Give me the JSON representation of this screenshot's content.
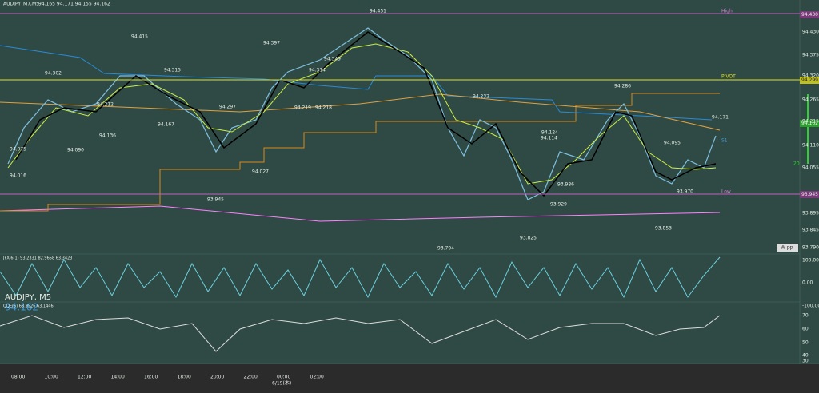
{
  "header": {
    "symbol": "AUDJPY_M7,M5",
    "quote": "94.165 94.171 94.155 94.162"
  },
  "watermark": {
    "symbol": "AUDJPY, M5",
    "price": "94.162"
  },
  "price_axis": [
    "94.430",
    "94.375",
    "94.320",
    "94.265",
    "94.215",
    "94.110",
    "94.055",
    "93.895",
    "93.845",
    "93.790"
  ],
  "price_boxes": {
    "high": "94.430",
    "pivot": "94.299",
    "current": "94.162",
    "low": "93.945"
  },
  "levels": {
    "high": "High",
    "pivot": "PIVOT",
    "low": "Low",
    "s": "S1",
    "wpp": "W pp",
    "count": "20"
  },
  "annotations": [
    "94.451",
    "94.415",
    "94.397",
    "94.349",
    "94.315",
    "94.314",
    "94.302",
    "94.297",
    "94.219",
    "94.218",
    "94.212",
    "94.232",
    "94.286",
    "94.171",
    "94.167",
    "94.136",
    "94.124",
    "94.114",
    "94.095",
    "94.090",
    "94.075",
    "94.027",
    "94.016",
    "93.986",
    "93.929",
    "93.970",
    "93.945",
    "93.853",
    "93.825",
    "93.794"
  ],
  "indicator1": {
    "label": "JFX-6(1) 93.2331 82.9658 63.3423",
    "axis": [
      "100.00",
      "0.00",
      "-100.00"
    ]
  },
  "indicator2": {
    "label": "QQE(5) 68.9926 63.1446",
    "axis": [
      "70",
      "60",
      "50",
      "40",
      "30"
    ]
  },
  "time_axis": [
    "08:00",
    "10:00",
    "12:00",
    "14:00",
    "16:00",
    "18:00",
    "20:00",
    "22:00",
    "00:00",
    "02:00"
  ],
  "date_label": "6/19(木)"
}
